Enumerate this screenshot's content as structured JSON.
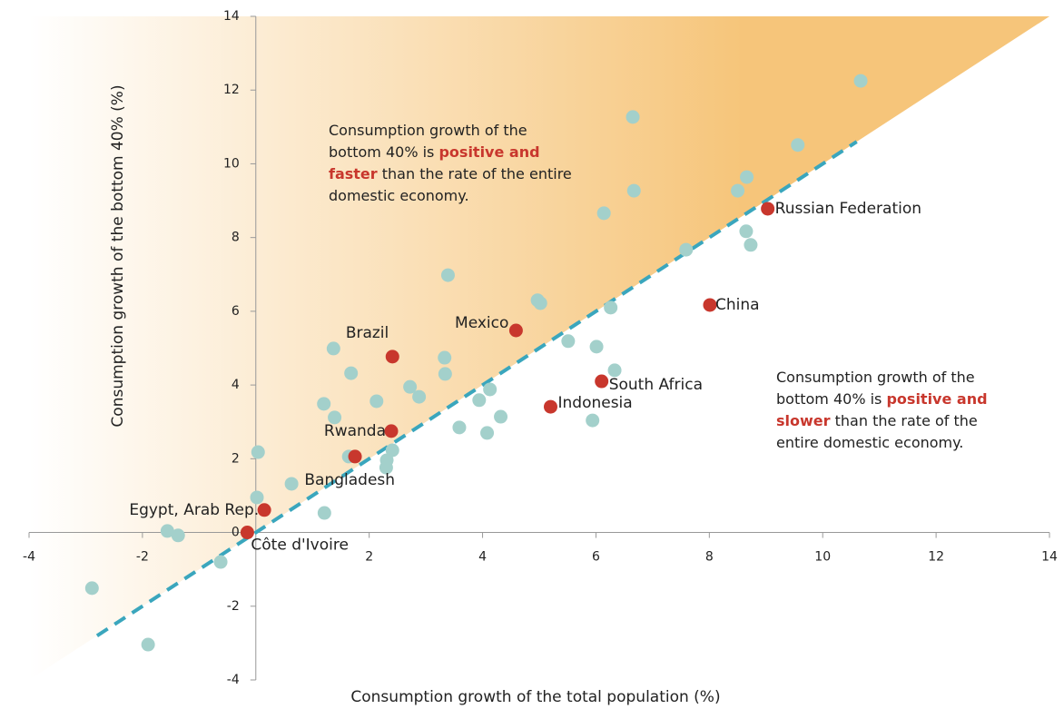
{
  "chart_data": {
    "type": "scatter",
    "x_label": "Consumption growth of the total population (%)",
    "y_label": "Consumption growth of the bottom 40% (%)",
    "xlim": [
      -4,
      14
    ],
    "ylim": [
      -4,
      14
    ],
    "xticks": [
      -4,
      -2,
      2,
      4,
      6,
      8,
      10,
      12,
      14
    ],
    "yticks": [
      -4,
      -2,
      0,
      2,
      4,
      6,
      8,
      10,
      12,
      14
    ],
    "reference_line": {
      "color": "#3aa6bd",
      "x": [
        -2.8,
        10.6
      ],
      "y": [
        -2.8,
        10.6
      ]
    },
    "shade_color": "#f6c57a",
    "series": [
      {
        "color": "#a3d0cb",
        "x": [
          10.67,
          6.65,
          9.56,
          6.67,
          8.66,
          8.5,
          6.14,
          8.65,
          8.73,
          7.59,
          3.39,
          4.97,
          5.02,
          6.26,
          5.51,
          6.01,
          6.33,
          1.37,
          1.68,
          3.33,
          3.34,
          1.2,
          1.39,
          2.13,
          2.72,
          2.88,
          3.94,
          4.13,
          4.32,
          3.59,
          4.08,
          5.94,
          1.64,
          2.41,
          2.31,
          2.3,
          0.04,
          0.63,
          0.02,
          1.21,
          -1.56,
          -1.37,
          -0.62,
          -2.89,
          -1.9
        ],
        "values": [
          12.25,
          11.27,
          10.51,
          9.27,
          9.64,
          9.27,
          8.66,
          8.17,
          7.8,
          7.67,
          6.98,
          6.3,
          6.22,
          6.1,
          5.19,
          5.04,
          4.4,
          4.99,
          4.32,
          4.74,
          4.3,
          3.49,
          3.12,
          3.56,
          3.95,
          3.68,
          3.59,
          3.88,
          3.14,
          2.85,
          2.7,
          3.04,
          2.06,
          2.23,
          1.96,
          1.76,
          2.18,
          1.32,
          0.95,
          0.53,
          0.04,
          -0.08,
          -0.8,
          -1.51,
          -3.04
        ]
      },
      {
        "color": "#c8372d",
        "labels": [
          "Russian Federation",
          "China",
          "Mexico",
          "Brazil",
          "South Africa",
          "Indonesia",
          "Rwanda",
          "Bangladesh",
          "Egypt, Arab Rep.",
          "Côte d'Ivoire"
        ],
        "x": [
          9.03,
          8.01,
          4.59,
          2.41,
          6.1,
          5.2,
          2.39,
          1.75,
          0.15,
          -0.15
        ],
        "values": [
          8.78,
          6.17,
          5.48,
          4.77,
          4.1,
          3.41,
          2.75,
          2.06,
          0.61,
          0.0
        ]
      }
    ],
    "annotations": [
      {
        "before": "Consumption growth of the bottom 40% is ",
        "highlight": "positive and faster",
        "after": " than the rate of the entire domestic economy.",
        "highlight_color": "#c8372d"
      },
      {
        "before": "Consumption growth of the bottom 40% is ",
        "highlight": "positive and slower",
        "after": " than the rate of the entire domestic economy.",
        "highlight_color": "#c8372d"
      }
    ]
  }
}
